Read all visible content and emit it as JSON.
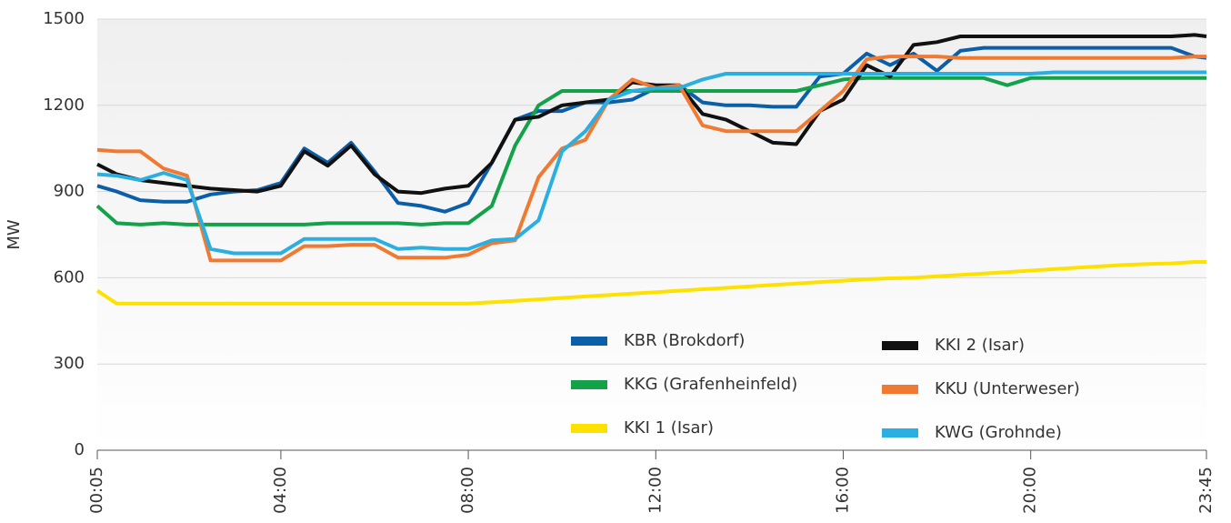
{
  "chart_data": {
    "type": "line",
    "y_label": "MW",
    "x": [
      "00:05",
      "00:30",
      "01:00",
      "01:30",
      "02:00",
      "02:30",
      "03:00",
      "03:30",
      "04:00",
      "04:30",
      "05:00",
      "05:30",
      "06:00",
      "06:30",
      "07:00",
      "07:30",
      "08:00",
      "08:30",
      "09:00",
      "09:30",
      "10:00",
      "10:30",
      "11:00",
      "11:30",
      "12:00",
      "12:30",
      "13:00",
      "13:30",
      "14:00",
      "14:30",
      "15:00",
      "15:30",
      "16:00",
      "16:30",
      "17:00",
      "17:30",
      "18:00",
      "18:30",
      "19:00",
      "19:30",
      "20:00",
      "20:30",
      "21:00",
      "21:30",
      "22:00",
      "22:30",
      "23:00",
      "23:30",
      "23:45"
    ],
    "xlim": [
      "00:05",
      "23:45"
    ],
    "xticks": [
      "00:05",
      "04:00",
      "08:00",
      "12:00",
      "16:00",
      "20:00",
      "23:45"
    ],
    "ylim": [
      0,
      1500
    ],
    "yticks": [
      0,
      300,
      600,
      900,
      1200,
      1500
    ],
    "grid": true,
    "legend": "lower right",
    "series": [
      {
        "name": "KBR (Brokdorf)",
        "color": "#0b5ea8",
        "values": [
          920,
          900,
          870,
          865,
          865,
          890,
          900,
          905,
          930,
          1050,
          1000,
          1070,
          970,
          860,
          850,
          830,
          860,
          1000,
          1150,
          1180,
          1180,
          1210,
          1210,
          1220,
          1260,
          1270,
          1210,
          1200,
          1200,
          1195,
          1195,
          1300,
          1310,
          1380,
          1340,
          1380,
          1320,
          1390,
          1400,
          1400,
          1400,
          1400,
          1400,
          1400,
          1400,
          1400,
          1400,
          1370,
          1365
        ]
      },
      {
        "name": "KKG (Grafenheinfeld)",
        "color": "#13a24a",
        "values": [
          850,
          790,
          785,
          790,
          785,
          785,
          785,
          785,
          785,
          785,
          790,
          790,
          790,
          790,
          785,
          790,
          790,
          850,
          1060,
          1200,
          1250,
          1250,
          1250,
          1250,
          1250,
          1250,
          1250,
          1250,
          1250,
          1250,
          1250,
          1270,
          1290,
          1295,
          1295,
          1295,
          1295,
          1295,
          1295,
          1270,
          1295,
          1295,
          1295,
          1295,
          1295,
          1295,
          1295,
          1295,
          1295
        ]
      },
      {
        "name": "KKI 1 (Isar)",
        "color": "#ffe100",
        "values": [
          555,
          510,
          510,
          510,
          510,
          510,
          510,
          510,
          510,
          510,
          510,
          510,
          510,
          510,
          510,
          510,
          510,
          515,
          520,
          525,
          530,
          535,
          540,
          545,
          550,
          555,
          560,
          565,
          570,
          575,
          580,
          585,
          590,
          595,
          598,
          600,
          605,
          610,
          615,
          620,
          625,
          630,
          635,
          640,
          645,
          648,
          650,
          655,
          655
        ]
      },
      {
        "name": "KKI 2 (Isar)",
        "color": "#111111",
        "values": [
          995,
          960,
          940,
          930,
          920,
          910,
          905,
          900,
          920,
          1040,
          990,
          1060,
          960,
          900,
          895,
          910,
          920,
          1000,
          1150,
          1160,
          1200,
          1210,
          1220,
          1280,
          1270,
          1270,
          1170,
          1150,
          1110,
          1070,
          1065,
          1180,
          1220,
          1340,
          1300,
          1410,
          1420,
          1440,
          1440,
          1440,
          1440,
          1440,
          1440,
          1440,
          1440,
          1440,
          1440,
          1445,
          1440
        ]
      },
      {
        "name": "KKU (Unterweser)",
        "color": "#f07a32",
        "values": [
          1045,
          1040,
          1040,
          980,
          955,
          660,
          660,
          660,
          660,
          710,
          710,
          715,
          715,
          670,
          670,
          670,
          680,
          720,
          730,
          950,
          1050,
          1080,
          1220,
          1290,
          1260,
          1270,
          1130,
          1110,
          1110,
          1110,
          1110,
          1180,
          1250,
          1360,
          1370,
          1370,
          1370,
          1365,
          1365,
          1365,
          1365,
          1365,
          1365,
          1365,
          1365,
          1365,
          1365,
          1370,
          1370
        ]
      },
      {
        "name": "KWG (Grohnde)",
        "color": "#2bafe3",
        "values": [
          960,
          955,
          940,
          965,
          940,
          700,
          685,
          685,
          685,
          735,
          735,
          735,
          735,
          700,
          705,
          700,
          700,
          730,
          735,
          800,
          1040,
          1110,
          1220,
          1250,
          1260,
          1260,
          1290,
          1310,
          1310,
          1310,
          1310,
          1310,
          1310,
          1310,
          1310,
          1310,
          1310,
          1310,
          1310,
          1310,
          1310,
          1315,
          1315,
          1315,
          1315,
          1315,
          1315,
          1315,
          1315
        ]
      }
    ]
  }
}
